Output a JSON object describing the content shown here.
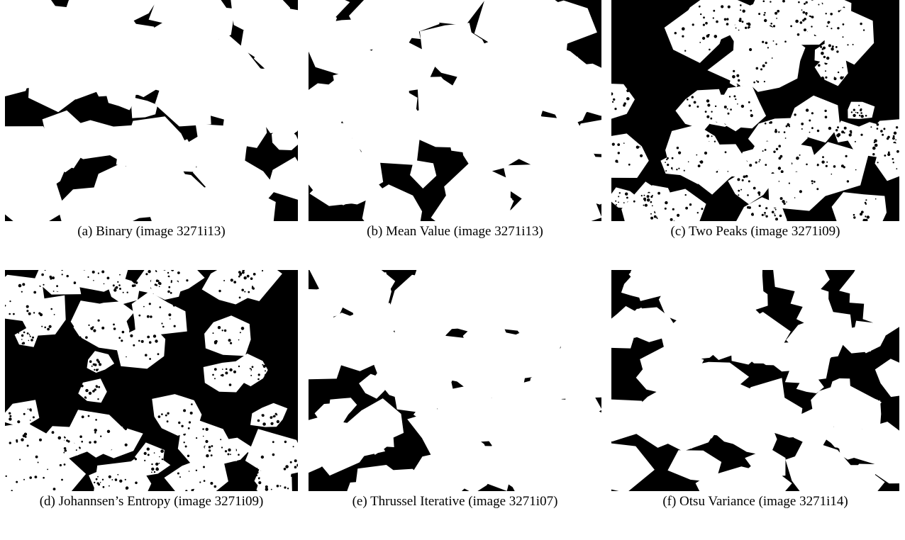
{
  "figure": {
    "panels": [
      {
        "caption": "(a) Binary (image 3271i13)"
      },
      {
        "caption": "(b) Mean Value (image 3271i13)"
      },
      {
        "caption": "(c) Two Peaks (image 3271i09)"
      },
      {
        "caption": "(d) Johannsen’s Entropy (image 3271i09)"
      },
      {
        "caption": "(e) Thrussel Iterative (image 3271i07)"
      },
      {
        "caption": "(f) Otsu Variance (image 3271i14)"
      }
    ]
  }
}
